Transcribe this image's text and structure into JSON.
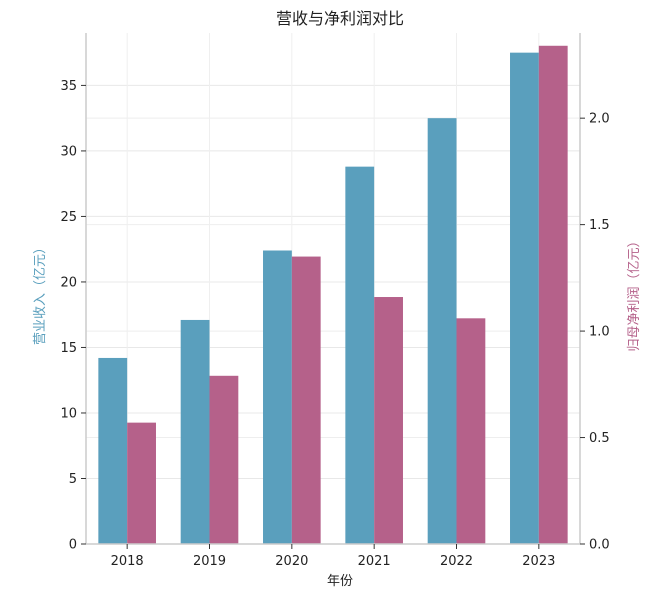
{
  "chart_data": {
    "type": "bar",
    "title": "营收与净利润对比",
    "xlabel": "年份",
    "ylabel_left": "营业收入（亿元）",
    "ylabel_right": "归母净利润（亿元）",
    "categories": [
      "2018",
      "2019",
      "2020",
      "2021",
      "2022",
      "2023"
    ],
    "series": [
      {
        "values": [
          14.2,
          17.1,
          22.4,
          28.8,
          32.5,
          37.5
        ],
        "axis": "left",
        "color": "#5a9fbd"
      },
      {
        "values": [
          0.57,
          0.79,
          1.35,
          1.16,
          1.06,
          2.34
        ],
        "axis": "right",
        "color": "#b5618a"
      }
    ],
    "ylim_left": [
      0,
      39
    ],
    "ylim_right": [
      0,
      2.4
    ],
    "yticks_left": [
      0,
      5,
      10,
      15,
      20,
      25,
      30,
      35
    ],
    "yticks_right": [
      0.0,
      0.5,
      1.0,
      1.5,
      2.0
    ],
    "yticks_right_labels": [
      "0.0",
      "0.5",
      "1.0",
      "1.5",
      "2.0"
    ],
    "grid": true,
    "left_label_color": "#5a9fbd",
    "right_label_color": "#b5618a"
  }
}
